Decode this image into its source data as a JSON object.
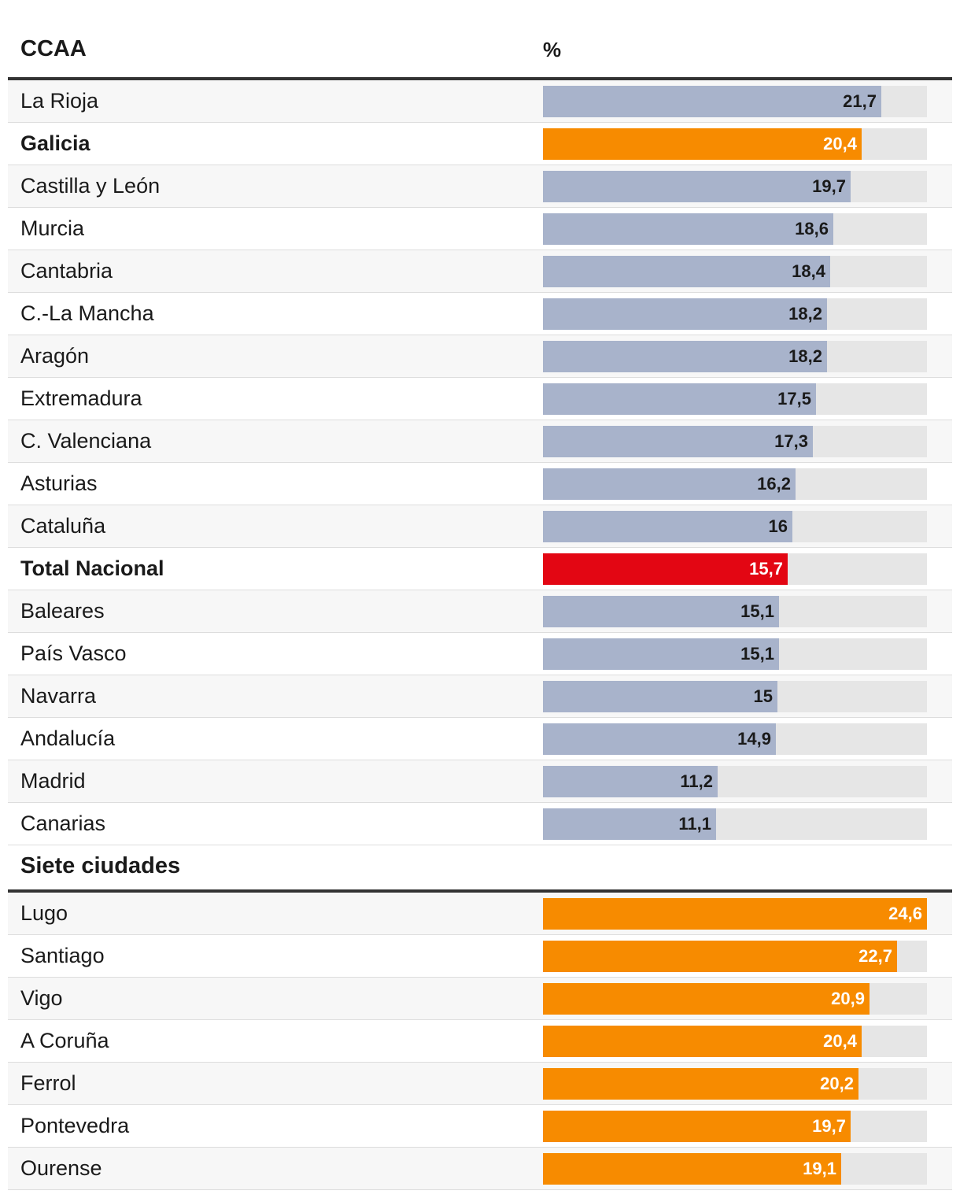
{
  "header": {
    "col_region": "CCAA",
    "col_percent": "%"
  },
  "section2": {
    "title": "Siete ciudades"
  },
  "colors": {
    "default_bar": "#a8b3cb",
    "galicia_bar": "#f78b00",
    "national_bar": "#e30613",
    "track": "#e6e6e6"
  },
  "chart_data": [
    {
      "type": "bar",
      "orientation": "horizontal",
      "title": "CCAA",
      "value_label": "%",
      "xlim": [
        0,
        24.6
      ],
      "categories": [
        "La Rioja",
        "Galicia",
        "Castilla y León",
        "Murcia",
        "Cantabria",
        "C.-La Mancha",
        "Aragón",
        "Extremadura",
        "C. Valenciana",
        "Asturias",
        "Cataluña",
        "Total Nacional",
        "Baleares",
        "País Vasco",
        "Navarra",
        "Andalucía",
        "Madrid",
        "Canarias"
      ],
      "values": [
        21.7,
        20.4,
        19.7,
        18.6,
        18.4,
        18.2,
        18.2,
        17.5,
        17.3,
        16.2,
        16,
        15.7,
        15.1,
        15.1,
        15,
        14.9,
        11.2,
        11.1
      ],
      "value_labels": [
        "21,7",
        "20,4",
        "19,7",
        "18,6",
        "18,4",
        "18,2",
        "18,2",
        "17,5",
        "17,3",
        "16,2",
        "16",
        "15,7",
        "15,1",
        "15,1",
        "15",
        "14,9",
        "11,2",
        "11,1"
      ],
      "highlight": {
        "Galicia": "galicia",
        "Total Nacional": "national"
      }
    },
    {
      "type": "bar",
      "orientation": "horizontal",
      "title": "Siete ciudades",
      "xlim": [
        0,
        24.6
      ],
      "categories": [
        "Lugo",
        "Santiago",
        "Vigo",
        "A Coruña",
        "Ferrol",
        "Pontevedra",
        "Ourense"
      ],
      "values": [
        24.6,
        22.7,
        20.9,
        20.4,
        20.2,
        19.7,
        19.1
      ],
      "value_labels": [
        "24,6",
        "22,7",
        "20,9",
        "20,4",
        "20,2",
        "19,7",
        "19,1"
      ],
      "bar_color": "galicia"
    }
  ]
}
